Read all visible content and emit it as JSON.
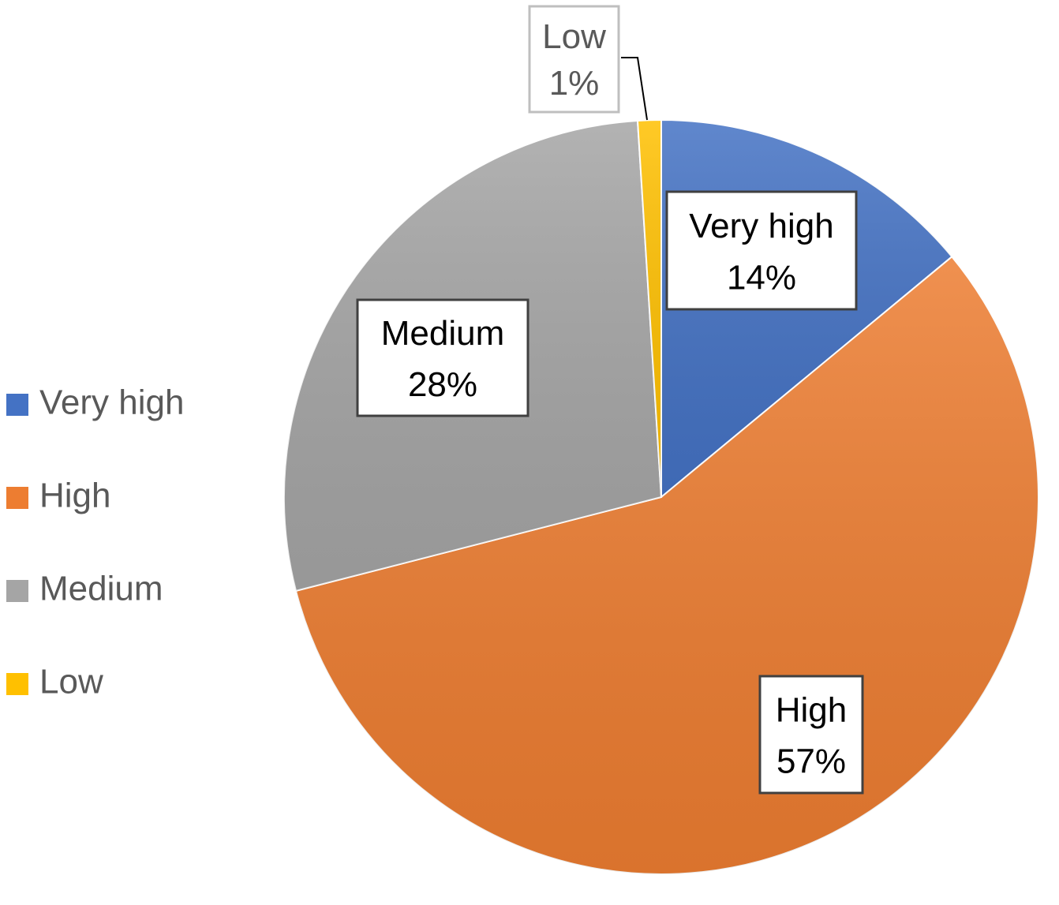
{
  "chart_data": {
    "type": "pie",
    "categories": [
      "Very high",
      "High",
      "Medium",
      "Low"
    ],
    "values": [
      14,
      57,
      28,
      1
    ],
    "value_labels": [
      "14%",
      "57%",
      "28%",
      "1%"
    ],
    "colors": [
      "#4472c4",
      "#ed7d31",
      "#a5a5a5",
      "#ffc000"
    ],
    "legend": "left"
  }
}
